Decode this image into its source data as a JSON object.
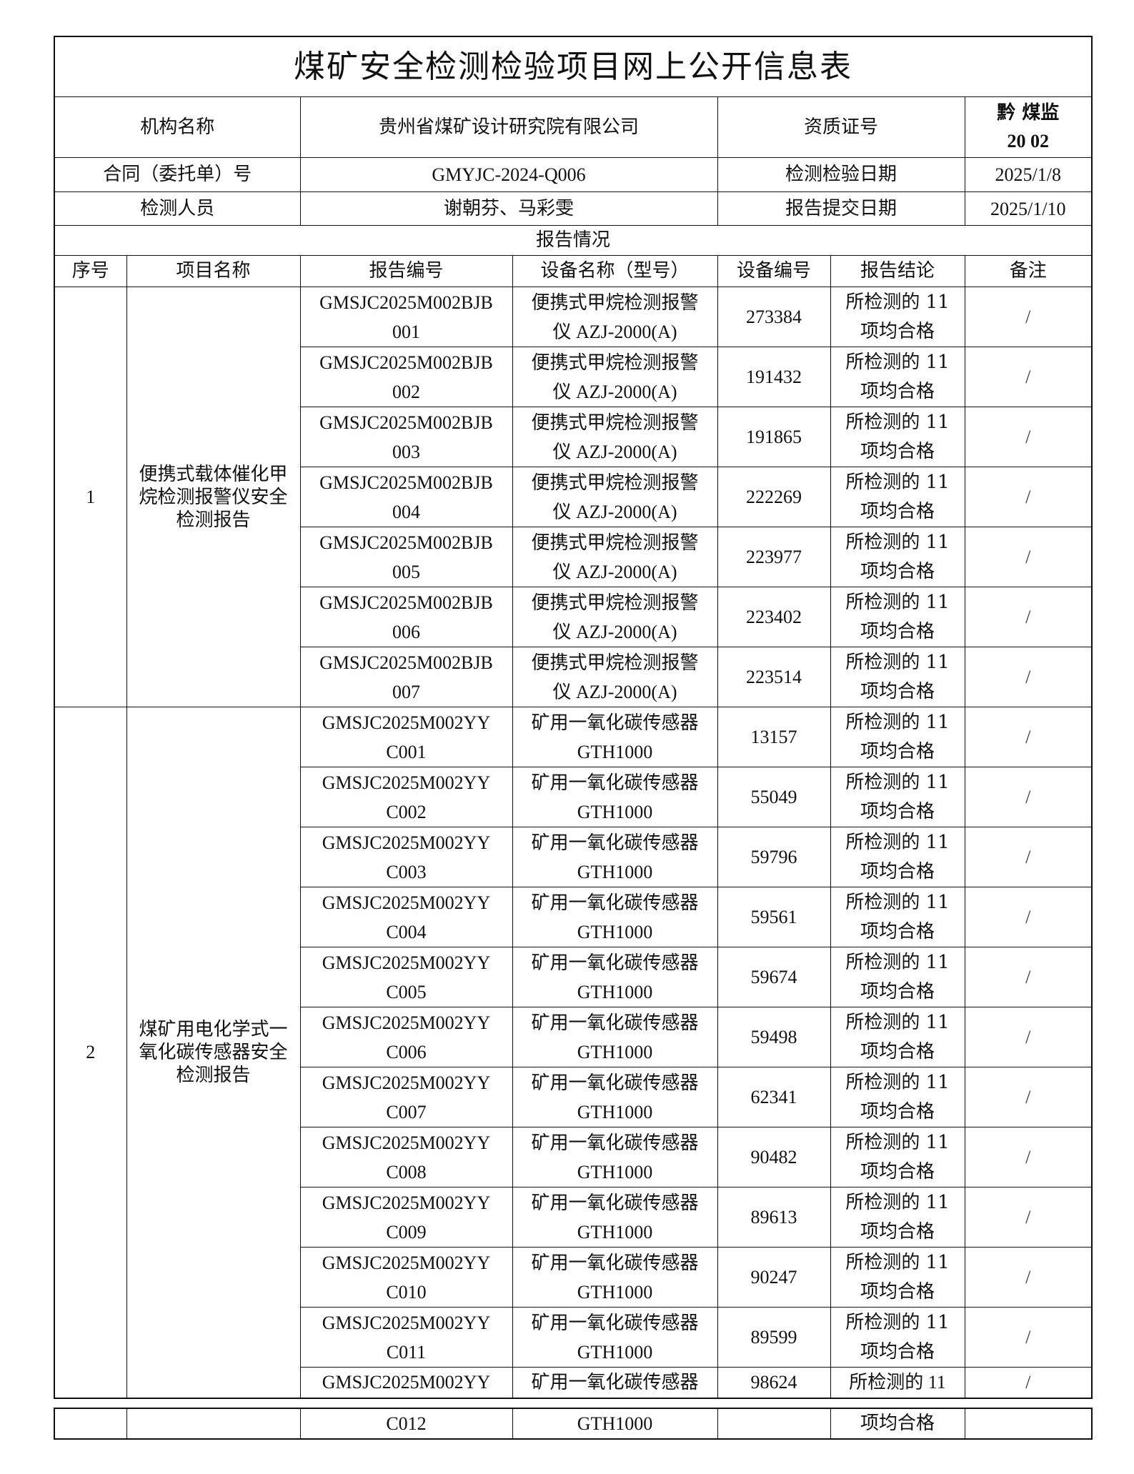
{
  "title": "煤矿安全检测检验项目网上公开信息表",
  "info": {
    "org_label": "机构名称",
    "org_value": "贵州省煤矿设计研究院有限公司",
    "cert_label": "资质证号",
    "cert_value_line1": "黔 煤监",
    "cert_value_line2": "20 02",
    "contract_label": "合同（委托单）号",
    "contract_value": "GMYJC-2024-Q006",
    "test_date_label": "检测检验日期",
    "test_date_value": "2025/1/8",
    "staff_label": "检测人员",
    "staff_value": "谢朝芬、马彩雯",
    "submit_date_label": "报告提交日期",
    "submit_date_value": "2025/1/10"
  },
  "report_section_label": "报告情况",
  "columns": [
    "序号",
    "项目名称",
    "报告编号",
    "设备名称（型号）",
    "设备编号",
    "报告结论",
    "备注"
  ],
  "groups": [
    {
      "seq": "1",
      "project": "便携式载体催化甲烷检测报警仪安全检测报告",
      "rows": [
        {
          "report_no": [
            "GMSJC2025M002BJB",
            "001"
          ],
          "device": [
            "便携式甲烷检测报警",
            "仪 AZJ-2000(A)"
          ],
          "device_no": "273384",
          "conclusion": [
            "所检测的 11",
            "项均合格"
          ],
          "remark": "/"
        },
        {
          "report_no": [
            "GMSJC2025M002BJB",
            "002"
          ],
          "device": [
            "便携式甲烷检测报警",
            "仪 AZJ-2000(A)"
          ],
          "device_no": "191432",
          "conclusion": [
            "所检测的 11",
            "项均合格"
          ],
          "remark": "/"
        },
        {
          "report_no": [
            "GMSJC2025M002BJB",
            "003"
          ],
          "device": [
            "便携式甲烷检测报警",
            "仪 AZJ-2000(A)"
          ],
          "device_no": "191865",
          "conclusion": [
            "所检测的 11",
            "项均合格"
          ],
          "remark": "/"
        },
        {
          "report_no": [
            "GMSJC2025M002BJB",
            "004"
          ],
          "device": [
            "便携式甲烷检测报警",
            "仪 AZJ-2000(A)"
          ],
          "device_no": "222269",
          "conclusion": [
            "所检测的 11",
            "项均合格"
          ],
          "remark": "/"
        },
        {
          "report_no": [
            "GMSJC2025M002BJB",
            "005"
          ],
          "device": [
            "便携式甲烷检测报警",
            "仪 AZJ-2000(A)"
          ],
          "device_no": "223977",
          "conclusion": [
            "所检测的 11",
            "项均合格"
          ],
          "remark": "/"
        },
        {
          "report_no": [
            "GMSJC2025M002BJB",
            "006"
          ],
          "device": [
            "便携式甲烷检测报警",
            "仪 AZJ-2000(A)"
          ],
          "device_no": "223402",
          "conclusion": [
            "所检测的 11",
            "项均合格"
          ],
          "remark": "/"
        },
        {
          "report_no": [
            "GMSJC2025M002BJB",
            "007"
          ],
          "device": [
            "便携式甲烷检测报警",
            "仪 AZJ-2000(A)"
          ],
          "device_no": "223514",
          "conclusion": [
            "所检测的 11",
            "项均合格"
          ],
          "remark": "/"
        }
      ]
    },
    {
      "seq": "2",
      "project": "煤矿用电化学式一氧化碳传感器安全检测报告",
      "rows": [
        {
          "report_no": [
            "GMSJC2025M002YY",
            "C001"
          ],
          "device": [
            "矿用一氧化碳传感器",
            "GTH1000"
          ],
          "device_no": "13157",
          "conclusion": [
            "所检测的 11",
            "项均合格"
          ],
          "remark": "/"
        },
        {
          "report_no": [
            "GMSJC2025M002YY",
            "C002"
          ],
          "device": [
            "矿用一氧化碳传感器",
            "GTH1000"
          ],
          "device_no": "55049",
          "conclusion": [
            "所检测的 11",
            "项均合格"
          ],
          "remark": "/"
        },
        {
          "report_no": [
            "GMSJC2025M002YY",
            "C003"
          ],
          "device": [
            "矿用一氧化碳传感器",
            "GTH1000"
          ],
          "device_no": "59796",
          "conclusion": [
            "所检测的 11",
            "项均合格"
          ],
          "remark": "/"
        },
        {
          "report_no": [
            "GMSJC2025M002YY",
            "C004"
          ],
          "device": [
            "矿用一氧化碳传感器",
            "GTH1000"
          ],
          "device_no": "59561",
          "conclusion": [
            "所检测的 11",
            "项均合格"
          ],
          "remark": "/"
        },
        {
          "report_no": [
            "GMSJC2025M002YY",
            "C005"
          ],
          "device": [
            "矿用一氧化碳传感器",
            "GTH1000"
          ],
          "device_no": "59674",
          "conclusion": [
            "所检测的 11",
            "项均合格"
          ],
          "remark": "/"
        },
        {
          "report_no": [
            "GMSJC2025M002YY",
            "C006"
          ],
          "device": [
            "矿用一氧化碳传感器",
            "GTH1000"
          ],
          "device_no": "59498",
          "conclusion": [
            "所检测的 11",
            "项均合格"
          ],
          "remark": "/"
        },
        {
          "report_no": [
            "GMSJC2025M002YY",
            "C007"
          ],
          "device": [
            "矿用一氧化碳传感器",
            "GTH1000"
          ],
          "device_no": "62341",
          "conclusion": [
            "所检测的 11",
            "项均合格"
          ],
          "remark": "/"
        },
        {
          "report_no": [
            "GMSJC2025M002YY",
            "C008"
          ],
          "device": [
            "矿用一氧化碳传感器",
            "GTH1000"
          ],
          "device_no": "90482",
          "conclusion": [
            "所检测的 11",
            "项均合格"
          ],
          "remark": "/"
        },
        {
          "report_no": [
            "GMSJC2025M002YY",
            "C009"
          ],
          "device": [
            "矿用一氧化碳传感器",
            "GTH1000"
          ],
          "device_no": "89613",
          "conclusion": [
            "所检测的 11",
            "项均合格"
          ],
          "remark": "/"
        },
        {
          "report_no": [
            "GMSJC2025M002YY",
            "C010"
          ],
          "device": [
            "矿用一氧化碳传感器",
            "GTH1000"
          ],
          "device_no": "90247",
          "conclusion": [
            "所检测的 11",
            "项均合格"
          ],
          "remark": "/"
        },
        {
          "report_no": [
            "GMSJC2025M002YY",
            "C011"
          ],
          "device": [
            "矿用一氧化碳传感器",
            "GTH1000"
          ],
          "device_no": "89599",
          "conclusion": [
            "所检测的 11",
            "项均合格"
          ],
          "remark": "/"
        },
        {
          "report_no": [
            "GMSJC2025M002YY",
            "C012"
          ],
          "device": [
            "矿用一氧化碳传感器",
            "GTH1000"
          ],
          "device_no": "98624",
          "conclusion": [
            "所检测的 11",
            "项均合格"
          ],
          "remark": "/",
          "split": true
        }
      ]
    }
  ]
}
